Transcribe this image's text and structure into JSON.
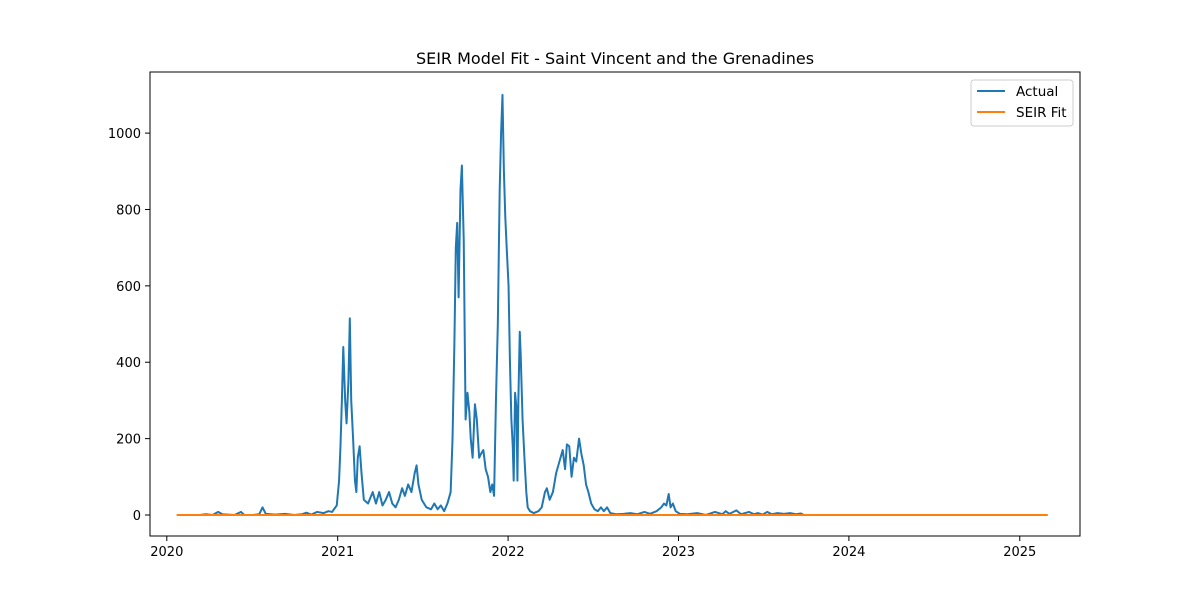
{
  "chart_data": {
    "type": "line",
    "title": "SEIR Model Fit - Saint Vincent and the Grenadines",
    "xlabel": "",
    "ylabel": "",
    "x_axis": {
      "type": "date",
      "range": [
        "2019-11-26",
        "2025-05-10"
      ],
      "tick_values": [
        "2020-01-01",
        "2021-01-01",
        "2022-01-01",
        "2023-01-01",
        "2024-01-01",
        "2025-01-01"
      ],
      "tick_labels": [
        "2020",
        "2021",
        "2022",
        "2023",
        "2024",
        "2025"
      ]
    },
    "y_axis": {
      "range": [
        -55,
        1160
      ],
      "ticks": [
        0,
        200,
        400,
        600,
        800,
        1000
      ]
    },
    "grid": false,
    "legend": {
      "position": "top-right",
      "entries": [
        "Actual",
        "SEIR Fit"
      ]
    },
    "series": [
      {
        "name": "Actual",
        "color": "#1f77b4",
        "points": [
          [
            "2020-03-11",
            0
          ],
          [
            "2020-03-25",
            2
          ],
          [
            "2020-04-08",
            0
          ],
          [
            "2020-04-20",
            8
          ],
          [
            "2020-04-29",
            2
          ],
          [
            "2020-05-10",
            1
          ],
          [
            "2020-05-25",
            0
          ],
          [
            "2020-06-08",
            8
          ],
          [
            "2020-06-15",
            0
          ],
          [
            "2020-07-03",
            0
          ],
          [
            "2020-07-17",
            2
          ],
          [
            "2020-07-24",
            20
          ],
          [
            "2020-07-31",
            3
          ],
          [
            "2020-08-20",
            1
          ],
          [
            "2020-09-10",
            3
          ],
          [
            "2020-09-30",
            0
          ],
          [
            "2020-10-17",
            2
          ],
          [
            "2020-10-26",
            6
          ],
          [
            "2020-11-05",
            1
          ],
          [
            "2020-11-18",
            8
          ],
          [
            "2020-12-02",
            5
          ],
          [
            "2020-12-12",
            10
          ],
          [
            "2020-12-20",
            8
          ],
          [
            "2020-12-30",
            25
          ],
          [
            "2021-01-04",
            90
          ],
          [
            "2021-01-07",
            180
          ],
          [
            "2021-01-10",
            300
          ],
          [
            "2021-01-13",
            440
          ],
          [
            "2021-01-17",
            300
          ],
          [
            "2021-01-20",
            240
          ],
          [
            "2021-01-24",
            350
          ],
          [
            "2021-01-27",
            515
          ],
          [
            "2021-01-30",
            300
          ],
          [
            "2021-02-03",
            200
          ],
          [
            "2021-02-07",
            90
          ],
          [
            "2021-02-10",
            60
          ],
          [
            "2021-02-13",
            150
          ],
          [
            "2021-02-17",
            180
          ],
          [
            "2021-02-21",
            110
          ],
          [
            "2021-02-26",
            40
          ],
          [
            "2021-03-07",
            30
          ],
          [
            "2021-03-17",
            60
          ],
          [
            "2021-03-24",
            30
          ],
          [
            "2021-03-31",
            60
          ],
          [
            "2021-04-07",
            25
          ],
          [
            "2021-04-14",
            40
          ],
          [
            "2021-04-21",
            60
          ],
          [
            "2021-04-28",
            30
          ],
          [
            "2021-05-05",
            20
          ],
          [
            "2021-05-12",
            40
          ],
          [
            "2021-05-19",
            70
          ],
          [
            "2021-05-25",
            50
          ],
          [
            "2021-06-01",
            80
          ],
          [
            "2021-06-08",
            60
          ],
          [
            "2021-06-15",
            110
          ],
          [
            "2021-06-19",
            130
          ],
          [
            "2021-06-23",
            80
          ],
          [
            "2021-06-30",
            40
          ],
          [
            "2021-07-10",
            20
          ],
          [
            "2021-07-20",
            15
          ],
          [
            "2021-07-27",
            30
          ],
          [
            "2021-08-03",
            15
          ],
          [
            "2021-08-10",
            25
          ],
          [
            "2021-08-17",
            10
          ],
          [
            "2021-08-24",
            30
          ],
          [
            "2021-08-31",
            60
          ],
          [
            "2021-09-04",
            200
          ],
          [
            "2021-09-08",
            450
          ],
          [
            "2021-09-11",
            700
          ],
          [
            "2021-09-14",
            765
          ],
          [
            "2021-09-17",
            570
          ],
          [
            "2021-09-21",
            850
          ],
          [
            "2021-09-24",
            915
          ],
          [
            "2021-09-28",
            720
          ],
          [
            "2021-10-02",
            250
          ],
          [
            "2021-10-06",
            320
          ],
          [
            "2021-10-10",
            270
          ],
          [
            "2021-10-13",
            200
          ],
          [
            "2021-10-17",
            150
          ],
          [
            "2021-10-22",
            290
          ],
          [
            "2021-10-26",
            250
          ],
          [
            "2021-10-31",
            150
          ],
          [
            "2021-11-04",
            160
          ],
          [
            "2021-11-09",
            170
          ],
          [
            "2021-11-14",
            120
          ],
          [
            "2021-11-19",
            100
          ],
          [
            "2021-11-24",
            60
          ],
          [
            "2021-11-28",
            80
          ],
          [
            "2021-12-02",
            50
          ],
          [
            "2021-12-06",
            300
          ],
          [
            "2021-12-10",
            500
          ],
          [
            "2021-12-14",
            850
          ],
          [
            "2021-12-17",
            1000
          ],
          [
            "2021-12-20",
            1100
          ],
          [
            "2021-12-23",
            900
          ],
          [
            "2021-12-26",
            780
          ],
          [
            "2021-12-29",
            700
          ],
          [
            "2022-01-02",
            600
          ],
          [
            "2022-01-05",
            400
          ],
          [
            "2022-01-08",
            250
          ],
          [
            "2022-01-11",
            180
          ],
          [
            "2022-01-13",
            90
          ],
          [
            "2022-01-16",
            320
          ],
          [
            "2022-01-19",
            280
          ],
          [
            "2022-01-21",
            90
          ],
          [
            "2022-01-23",
            300
          ],
          [
            "2022-01-26",
            480
          ],
          [
            "2022-01-28",
            420
          ],
          [
            "2022-02-01",
            250
          ],
          [
            "2022-02-05",
            150
          ],
          [
            "2022-02-09",
            60
          ],
          [
            "2022-02-12",
            20
          ],
          [
            "2022-02-17",
            10
          ],
          [
            "2022-02-25",
            5
          ],
          [
            "2022-03-07",
            10
          ],
          [
            "2022-03-14",
            20
          ],
          [
            "2022-03-21",
            60
          ],
          [
            "2022-03-25",
            70
          ],
          [
            "2022-03-31",
            40
          ],
          [
            "2022-04-07",
            60
          ],
          [
            "2022-04-14",
            110
          ],
          [
            "2022-04-21",
            140
          ],
          [
            "2022-04-28",
            170
          ],
          [
            "2022-05-03",
            120
          ],
          [
            "2022-05-07",
            185
          ],
          [
            "2022-05-12",
            180
          ],
          [
            "2022-05-17",
            100
          ],
          [
            "2022-05-22",
            150
          ],
          [
            "2022-05-27",
            140
          ],
          [
            "2022-06-02",
            200
          ],
          [
            "2022-06-07",
            160
          ],
          [
            "2022-06-12",
            130
          ],
          [
            "2022-06-17",
            80
          ],
          [
            "2022-06-22",
            60
          ],
          [
            "2022-06-28",
            30
          ],
          [
            "2022-07-05",
            15
          ],
          [
            "2022-07-12",
            10
          ],
          [
            "2022-07-19",
            20
          ],
          [
            "2022-07-25",
            10
          ],
          [
            "2022-08-01",
            20
          ],
          [
            "2022-08-08",
            5
          ],
          [
            "2022-08-20",
            2
          ],
          [
            "2022-09-05",
            3
          ],
          [
            "2022-09-20",
            5
          ],
          [
            "2022-10-05",
            2
          ],
          [
            "2022-10-20",
            8
          ],
          [
            "2022-11-01",
            3
          ],
          [
            "2022-11-15",
            10
          ],
          [
            "2022-11-25",
            20
          ],
          [
            "2022-12-01",
            30
          ],
          [
            "2022-12-06",
            25
          ],
          [
            "2022-12-11",
            55
          ],
          [
            "2022-12-15",
            20
          ],
          [
            "2022-12-20",
            30
          ],
          [
            "2022-12-26",
            10
          ],
          [
            "2023-01-04",
            3
          ],
          [
            "2023-01-20",
            2
          ],
          [
            "2023-02-10",
            5
          ],
          [
            "2023-03-01",
            0
          ],
          [
            "2023-03-20",
            8
          ],
          [
            "2023-04-05",
            2
          ],
          [
            "2023-04-12",
            10
          ],
          [
            "2023-04-20",
            3
          ],
          [
            "2023-05-05",
            12
          ],
          [
            "2023-05-15",
            2
          ],
          [
            "2023-06-01",
            8
          ],
          [
            "2023-06-12",
            2
          ],
          [
            "2023-06-20",
            5
          ],
          [
            "2023-06-30",
            1
          ],
          [
            "2023-07-10",
            8
          ],
          [
            "2023-07-20",
            2
          ],
          [
            "2023-08-01",
            5
          ],
          [
            "2023-08-15",
            3
          ],
          [
            "2023-08-28",
            5
          ],
          [
            "2023-09-10",
            2
          ],
          [
            "2023-09-20",
            4
          ],
          [
            "2023-09-27",
            0
          ],
          [
            "2023-10-03",
            0
          ]
        ]
      },
      {
        "name": "SEIR Fit",
        "color": "#ff7f0e",
        "points": [
          [
            "2020-01-22",
            0
          ],
          [
            "2025-03-02",
            0
          ]
        ]
      }
    ]
  }
}
